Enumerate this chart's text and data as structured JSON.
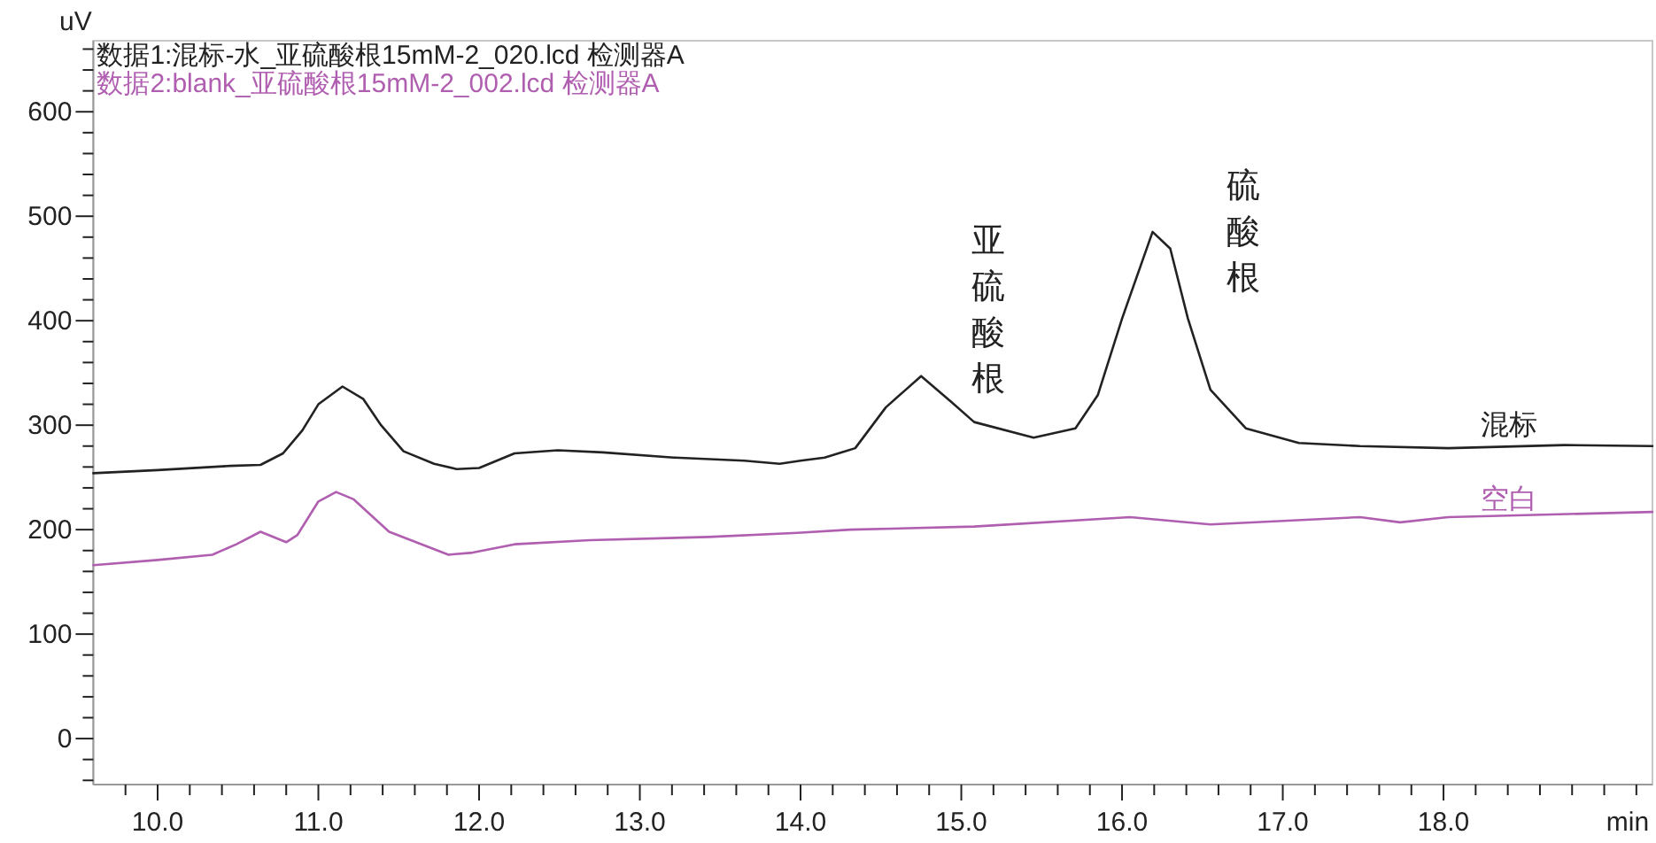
{
  "chart_data": {
    "type": "line",
    "xlabel": "min",
    "ylabel": "uV",
    "legend": "top left",
    "line_style": "solid",
    "xlim": [
      9.6,
      19.3
    ],
    "ylim": [
      -44,
      668
    ],
    "xticks": [
      {
        "value": 9.8,
        "label": null
      },
      {
        "value": 10,
        "label": "10.0"
      },
      {
        "value": 10.2,
        "label": null
      },
      {
        "value": 10.4,
        "label": null
      },
      {
        "value": 10.6,
        "label": null
      },
      {
        "value": 10.8,
        "label": null
      },
      {
        "value": 11,
        "label": "11.0"
      },
      {
        "value": 11.2,
        "label": null
      },
      {
        "value": 11.4,
        "label": null
      },
      {
        "value": 11.6,
        "label": null
      },
      {
        "value": 11.8,
        "label": null
      },
      {
        "value": 12,
        "label": "12.0"
      },
      {
        "value": 12.2,
        "label": null
      },
      {
        "value": 12.4,
        "label": null
      },
      {
        "value": 12.6,
        "label": null
      },
      {
        "value": 12.8,
        "label": null
      },
      {
        "value": 13,
        "label": "13.0"
      },
      {
        "value": 13.2,
        "label": null
      },
      {
        "value": 13.4,
        "label": null
      },
      {
        "value": 13.6,
        "label": null
      },
      {
        "value": 13.8,
        "label": null
      },
      {
        "value": 14,
        "label": "14.0"
      },
      {
        "value": 14.2,
        "label": null
      },
      {
        "value": 14.4,
        "label": null
      },
      {
        "value": 14.6,
        "label": null
      },
      {
        "value": 14.8,
        "label": null
      },
      {
        "value": 15,
        "label": "15.0"
      },
      {
        "value": 15.2,
        "label": null
      },
      {
        "value": 15.4,
        "label": null
      },
      {
        "value": 15.6,
        "label": null
      },
      {
        "value": 15.8,
        "label": null
      },
      {
        "value": 16,
        "label": "16.0"
      },
      {
        "value": 16.2,
        "label": null
      },
      {
        "value": 16.4,
        "label": null
      },
      {
        "value": 16.6,
        "label": null
      },
      {
        "value": 16.8,
        "label": null
      },
      {
        "value": 17,
        "label": "17.0"
      },
      {
        "value": 17.2,
        "label": null
      },
      {
        "value": 17.4,
        "label": null
      },
      {
        "value": 17.6,
        "label": null
      },
      {
        "value": 17.8,
        "label": null
      },
      {
        "value": 18,
        "label": "18.0"
      },
      {
        "value": 18.2,
        "label": null
      },
      {
        "value": 18.4,
        "label": null
      },
      {
        "value": 18.6,
        "label": null
      },
      {
        "value": 18.8,
        "label": null
      },
      {
        "value": 19,
        "label": null
      },
      {
        "value": 19.2,
        "label": null
      }
    ],
    "yticks": [
      {
        "value": -40,
        "label": null
      },
      {
        "value": -20,
        "label": null
      },
      0,
      {
        "value": 20,
        "label": null
      },
      {
        "value": 40,
        "label": null
      },
      {
        "value": 60,
        "label": null
      },
      {
        "value": 80,
        "label": null
      },
      100,
      {
        "value": 120,
        "label": null
      },
      {
        "value": 140,
        "label": null
      },
      {
        "value": 160,
        "label": null
      },
      {
        "value": 180,
        "label": null
      },
      200,
      {
        "value": 220,
        "label": null
      },
      {
        "value": 240,
        "label": null
      },
      {
        "value": 260,
        "label": null
      },
      {
        "value": 280,
        "label": null
      },
      300,
      {
        "value": 320,
        "label": null
      },
      {
        "value": 340,
        "label": null
      },
      {
        "value": 360,
        "label": null
      },
      {
        "value": 380,
        "label": null
      },
      400,
      {
        "value": 420,
        "label": null
      },
      {
        "value": 440,
        "label": null
      },
      {
        "value": 460,
        "label": null
      },
      {
        "value": 480,
        "label": null
      },
      500,
      {
        "value": 520,
        "label": null
      },
      {
        "value": 540,
        "label": null
      },
      {
        "value": 560,
        "label": null
      },
      {
        "value": 580,
        "label": null
      },
      600,
      {
        "value": 620,
        "label": null
      },
      {
        "value": 640,
        "label": null
      },
      {
        "value": 660,
        "label": null
      }
    ],
    "series": [
      {
        "name": "数据1:混标-水_亚硫酸根15mM-2_020.lcd 检测器A",
        "color": "#222222",
        "x": [
          9.6,
          10.0,
          10.45,
          10.64,
          10.78,
          10.9,
          11.0,
          11.15,
          11.28,
          11.39,
          11.53,
          11.72,
          11.86,
          12.0,
          12.22,
          12.49,
          12.77,
          13.21,
          13.65,
          13.87,
          14.0,
          14.15,
          14.34,
          14.53,
          14.75,
          14.94,
          15.08,
          15.45,
          15.71,
          15.85,
          16.0,
          16.19,
          16.3,
          16.41,
          16.55,
          16.77,
          17.1,
          17.48,
          18.03,
          18.75,
          19.3
        ],
        "values": [
          254,
          257,
          261,
          262,
          273,
          295,
          320,
          337,
          325,
          300,
          275,
          263,
          258,
          259,
          273,
          276,
          274,
          269,
          266,
          263,
          266,
          269,
          278,
          317,
          347,
          322,
          303,
          288,
          297,
          329,
          402,
          485,
          469,
          402,
          334,
          297,
          283,
          280,
          278,
          281,
          280
        ]
      },
      {
        "name": "数据2:blank_亚硫酸根15mM-2_002.lcd 检测器A",
        "color": "#b05fb0",
        "x": [
          9.6,
          10.0,
          10.34,
          10.49,
          10.64,
          10.8,
          10.87,
          11.0,
          11.11,
          11.22,
          11.44,
          11.81,
          11.96,
          12.22,
          12.69,
          13.43,
          13.98,
          14.31,
          15.08,
          16.05,
          16.55,
          17.48,
          17.73,
          18.03,
          19.3
        ],
        "values": [
          166,
          171,
          176,
          186,
          198,
          188,
          195,
          227,
          236,
          229,
          198,
          176,
          178,
          186,
          190,
          193,
          197,
          200,
          203,
          212,
          205,
          212,
          207,
          212,
          217
        ]
      }
    ],
    "annotations": [
      "亚硫酸根",
      "硫酸根",
      "混标",
      "空白"
    ]
  }
}
